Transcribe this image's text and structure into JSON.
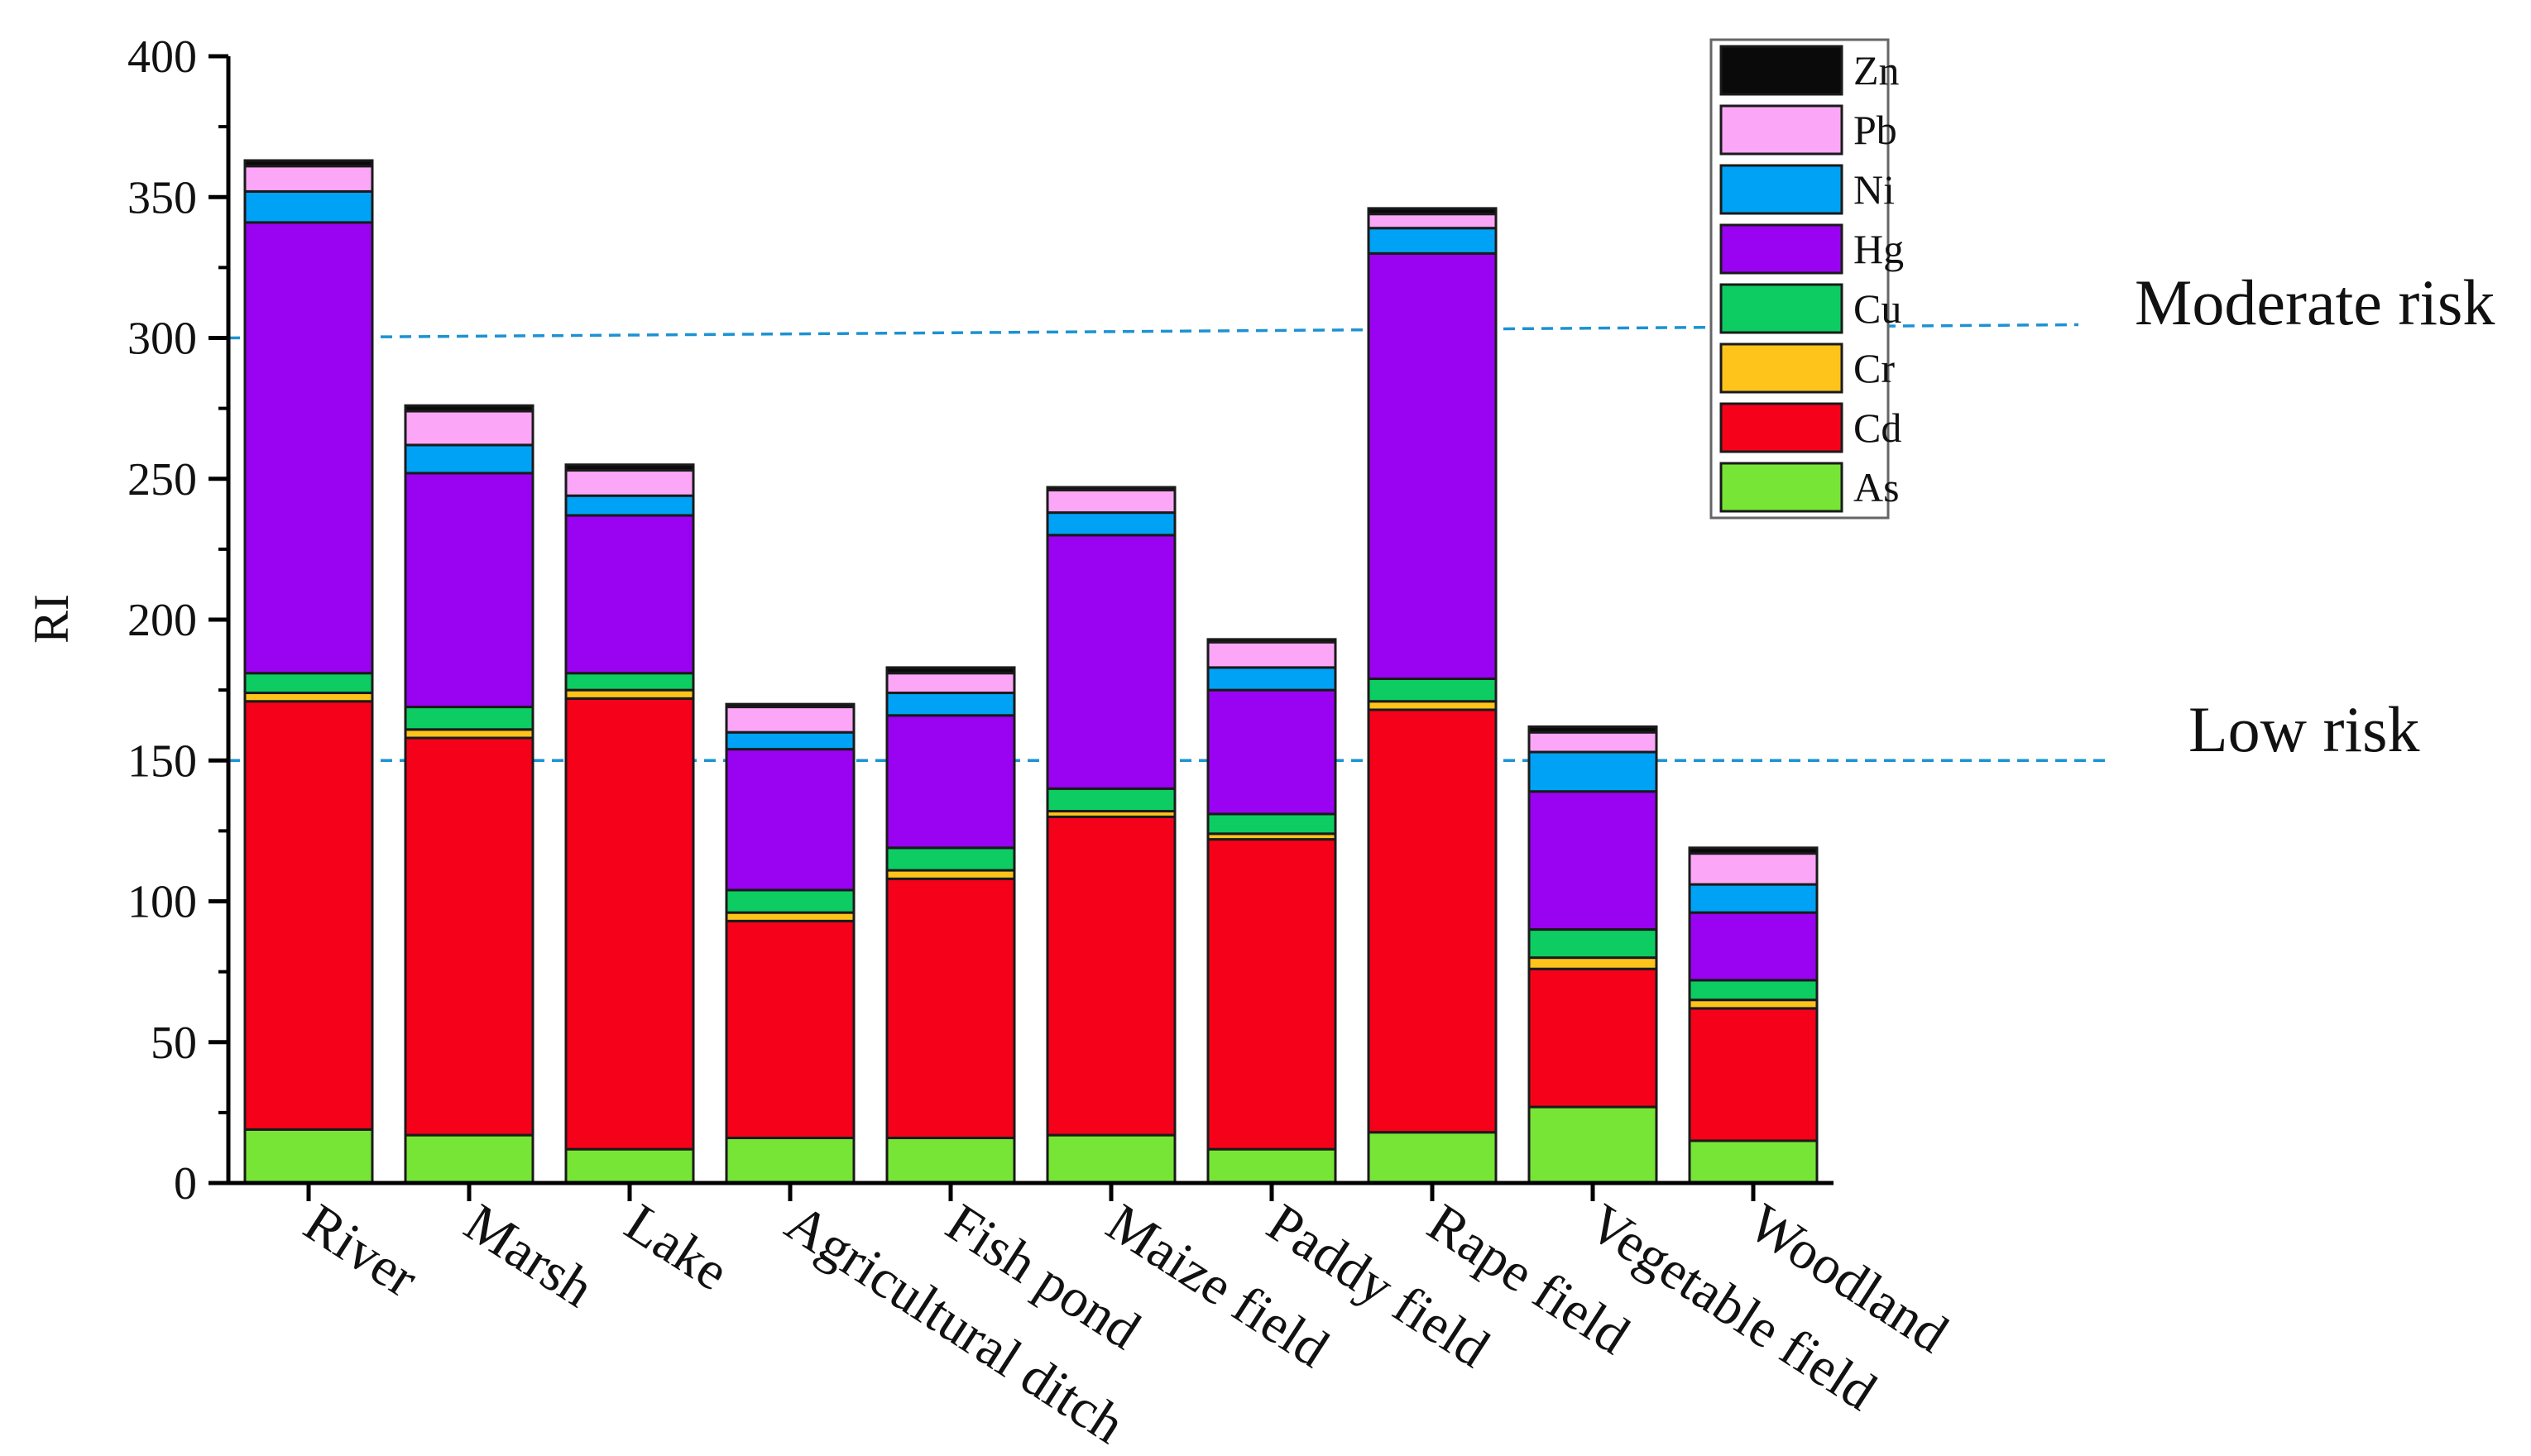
{
  "chart_data": {
    "type": "bar",
    "stacked": true,
    "title": "",
    "xlabel": "",
    "ylabel": "RI",
    "ylim": [
      0,
      400
    ],
    "yticks": [
      0,
      50,
      100,
      150,
      200,
      250,
      300,
      350,
      400
    ],
    "categories": [
      "River",
      "Marsh",
      "Lake",
      "Agricultural ditch",
      "Fish pond",
      "Maize field",
      "Paddy field",
      "Rape field",
      "Vegetable field",
      "Woodland"
    ],
    "series": [
      {
        "name": "As",
        "color": "#77e535",
        "values": [
          19,
          17,
          12,
          16,
          16,
          17,
          12,
          18,
          27,
          15
        ]
      },
      {
        "name": "Cd",
        "color": "#f5021a",
        "values": [
          152,
          141,
          160,
          77,
          92,
          113,
          110,
          150,
          49,
          47
        ]
      },
      {
        "name": "Cr",
        "color": "#ffc41b",
        "values": [
          3,
          3,
          3,
          3,
          3,
          2,
          2,
          3,
          4,
          3
        ]
      },
      {
        "name": "Cu",
        "color": "#0dcc62",
        "values": [
          7,
          8,
          6,
          8,
          8,
          8,
          7,
          8,
          10,
          7
        ]
      },
      {
        "name": "Hg",
        "color": "#9a02f2",
        "values": [
          160,
          83,
          56,
          50,
          47,
          90,
          44,
          151,
          49,
          24
        ]
      },
      {
        "name": "Ni",
        "color": "#00a2f5",
        "values": [
          11,
          10,
          7,
          6,
          8,
          8,
          8,
          9,
          14,
          10
        ]
      },
      {
        "name": "Pb",
        "color": "#fca6f7",
        "values": [
          9,
          12,
          9,
          9,
          7,
          8,
          9,
          5,
          7,
          11
        ]
      },
      {
        "name": "Zn",
        "color": "#0a0a0a",
        "values": [
          2,
          2,
          2,
          1,
          2,
          1,
          1,
          2,
          2,
          2
        ]
      }
    ],
    "legend_position": "top-right",
    "legend_order": [
      "Zn",
      "Pb",
      "Ni",
      "Hg",
      "Cu",
      "Cr",
      "Cd",
      "As"
    ],
    "reference_lines": [
      {
        "label": "Moderate risk",
        "value": 300,
        "color": "#1c92d2"
      },
      {
        "label": "Low risk",
        "value": 150,
        "color": "#1c92d2"
      }
    ]
  }
}
